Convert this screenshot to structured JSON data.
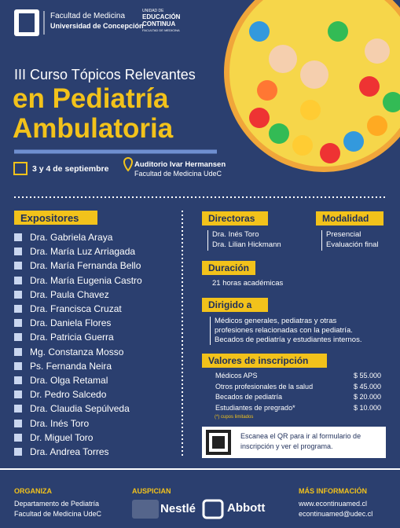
{
  "header": {
    "faculty": "Facultad de Medicina",
    "university": "Universidad de Concepción",
    "unit_top": "UNIDAD DE",
    "unit_mid": "EDUCACIÓN",
    "unit_bottom": "CONTINUA",
    "unit_sub": "FACULTAD DE MEDICINA"
  },
  "title": {
    "line1": "III Curso Tópicos Relevantes",
    "line2": "en Pediatría",
    "line3": "Ambulatoria"
  },
  "event": {
    "date": "3 y 4 de septiembre",
    "venue": "Auditorio Ivar Hermansen",
    "venue_sub": "Facultad de Medicina UdeC"
  },
  "expositores": {
    "title": "Expositores",
    "names": [
      "Dra. Gabriela Araya",
      "Dra. María Luz Arriagada",
      "Dra. María Fernanda Bello",
      "Dra. María Eugenia Castro",
      "Dra. Paula Chavez",
      "Dra. Francisca Cruzat",
      "Dra. Daniela Flores",
      "Dra. Patricia Guerra",
      "Mg. Constanza Mosso",
      "Ps. Fernanda Neira",
      "Dra. Olga Retamal",
      "Dr. Pedro Salcedo",
      "Dra. Claudia Sepúlveda",
      "Dra. Inés Toro",
      "Dr. Miguel Toro",
      "Dra. Andrea Torres"
    ]
  },
  "directoras": {
    "title": "Directoras",
    "names": [
      "Dra. Inés Toro",
      "Dra. Lilian Hickmann"
    ]
  },
  "modalidad": {
    "title": "Modalidad",
    "items": [
      "Presencial",
      "Evaluación final"
    ]
  },
  "duracion": {
    "title": "Duración",
    "text": "21 horas académicas"
  },
  "dirigido": {
    "title": "Dirigido a",
    "lines": [
      "Médicos generales, pediatras y otras",
      "profesiones relacionadas con la pediatría.",
      "Becados de pediatría y estudiantes internos."
    ]
  },
  "valores": {
    "title": "Valores de inscripción",
    "rows": [
      [
        "Médicos APS",
        "$ 55.000"
      ],
      [
        "Otros profesionales de la salud",
        "$ 45.000"
      ],
      [
        "Becados de pediatría",
        "$ 20.000"
      ],
      [
        "Estudiantes de pregrado*",
        "$ 10.000"
      ]
    ],
    "note": "(*) cupos limitados"
  },
  "qr": {
    "text": "Escanea el QR para ir al formulario de inscripción y ver el programa."
  },
  "footer": {
    "organiza": {
      "title": "ORGANIZA",
      "lines": [
        "Departamento de Pediatría",
        "Facultad de Medicina UdeC"
      ]
    },
    "auspician": {
      "title": "AUSPICIAN",
      "logos": [
        "Nestlé",
        "Abbott"
      ]
    },
    "info": {
      "title": "MÁS INFORMACIÓN",
      "web": "www.econtinuamed.cl",
      "email": "econtinuamed@udec.cl"
    }
  }
}
